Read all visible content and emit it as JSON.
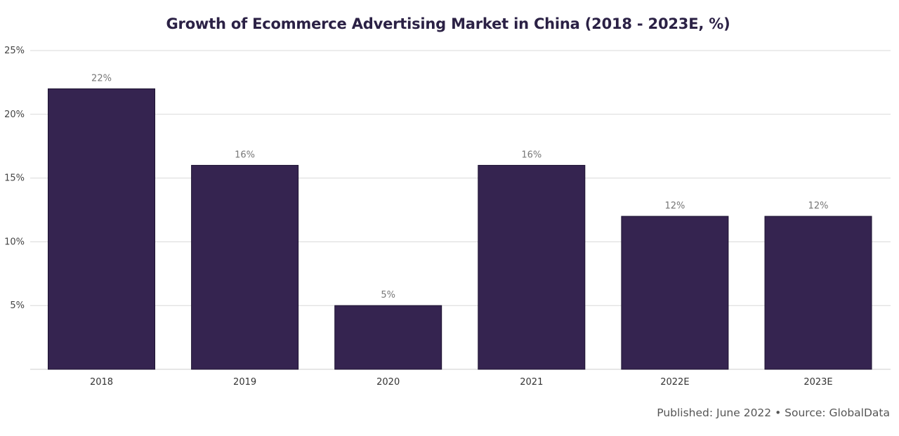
{
  "chart_data": {
    "type": "bar",
    "title": "Growth of Ecommerce Advertising Market in China (2018 - 2023E, %)",
    "categories": [
      "2018",
      "2019",
      "2020",
      "2021",
      "2022E",
      "2023E"
    ],
    "values": [
      22,
      16,
      5,
      16,
      12,
      12
    ],
    "value_labels": [
      "22%",
      "16%",
      "5%",
      "16%",
      "12%",
      "12%"
    ],
    "ylim": [
      0,
      25
    ],
    "yticks": [
      5,
      10,
      15,
      20,
      25
    ],
    "ytick_labels": [
      "5%",
      "10%",
      "15%",
      "20%",
      "25%"
    ],
    "xlabel": "",
    "ylabel": "",
    "grid": true,
    "bar_color": "#352450"
  },
  "footer": "Published: June 2022 • Source: GlobalData"
}
